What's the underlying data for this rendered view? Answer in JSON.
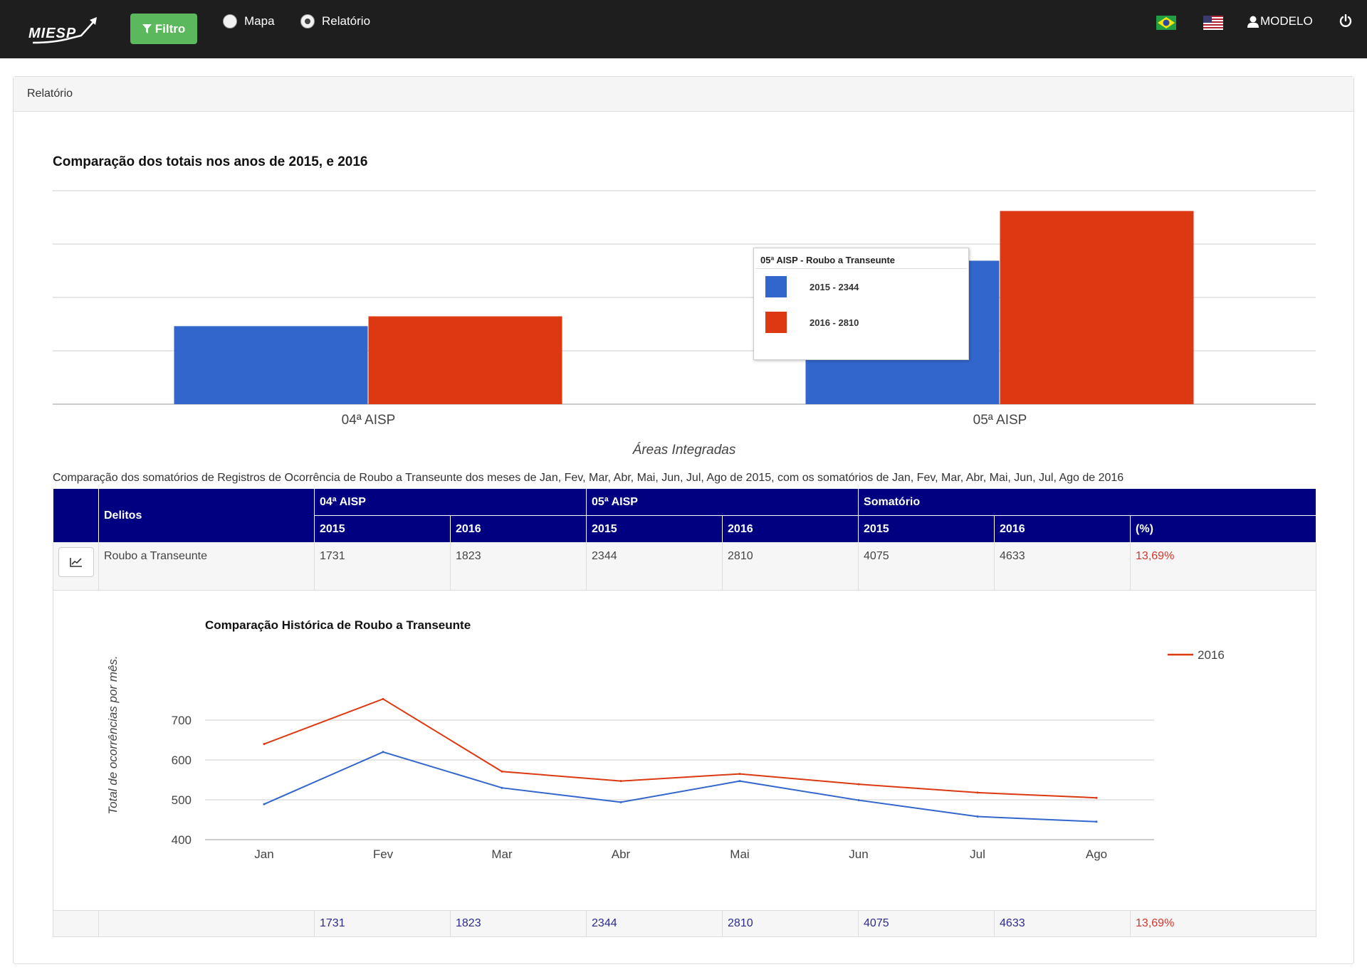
{
  "navbar": {
    "logo_text": "MIESP",
    "filter_label": "Filtro",
    "mode_options": [
      {
        "label": "Mapa",
        "checked": false
      },
      {
        "label": "Relatório",
        "checked": true
      }
    ],
    "user_label": "MODELO"
  },
  "panel": {
    "heading": "Relatório"
  },
  "bar_chart": {
    "title": "Comparação dos totais nos anos de 2015, e 2016",
    "tooltip": {
      "title": "05ª AISP - Roubo a Transeunte",
      "rows": [
        "2015 - 2344",
        "2016 - 2810"
      ]
    }
  },
  "table": {
    "caption": "Comparação dos somatórios de Registros de Ocorrência de Roubo a Transeunte dos meses de Jan, Fev, Mar, Abr, Mai, Jun, Jul, Ago de 2015, com os somatórios de Jan, Fev, Mar, Abr, Mai, Jun, Jul, Ago de 2016",
    "header_delitos": "Delitos",
    "group_headers": [
      "04ª AISP",
      "05ª AISP",
      "Somatório"
    ],
    "sub_headers": [
      "2015",
      "2016",
      "2015",
      "2016",
      "2015",
      "2016",
      "(%)"
    ],
    "row": {
      "label": "Roubo a Transeunte",
      "values": [
        "1731",
        "1823",
        "2344",
        "2810",
        "4075",
        "4633",
        "13,69%"
      ]
    },
    "totals": [
      "1731",
      "1823",
      "2344",
      "2810",
      "4075",
      "4633",
      "13,69%"
    ]
  },
  "chart_data": [
    {
      "type": "bar",
      "title": "Comparação dos totais nos anos de 2015, e 2016",
      "categories": [
        "04ª AISP",
        "05ª AISP"
      ],
      "series": [
        {
          "name": "2015",
          "values": [
            1731,
            2344
          ],
          "color": "#3366cc"
        },
        {
          "name": "2016",
          "values": [
            1823,
            2810
          ],
          "color": "#dc3912"
        }
      ],
      "xlabel": "Áreas Integradas",
      "ylabel": "",
      "ylim": [
        1000,
        3000
      ],
      "grid": true
    },
    {
      "type": "line",
      "title": "Comparação Histórica de Roubo a Transeunte",
      "x": [
        "Jan",
        "Fev",
        "Mar",
        "Abr",
        "Mai",
        "Jun",
        "Jul",
        "Ago"
      ],
      "series": [
        {
          "values": [
            489,
            620,
            530,
            494,
            547,
            499,
            458,
            445
          ],
          "color": "#3366cc"
        },
        {
          "name": "2016",
          "values": [
            640,
            753,
            571,
            547,
            565,
            539,
            518,
            505
          ],
          "color": "#dc3912"
        }
      ],
      "yticks": [
        "400",
        "500",
        "600",
        "700"
      ],
      "xlabel": "",
      "ylabel": "Total de ocorrências por mês.",
      "ylim": [
        400,
        800
      ],
      "grid": true,
      "legend": "right"
    }
  ]
}
